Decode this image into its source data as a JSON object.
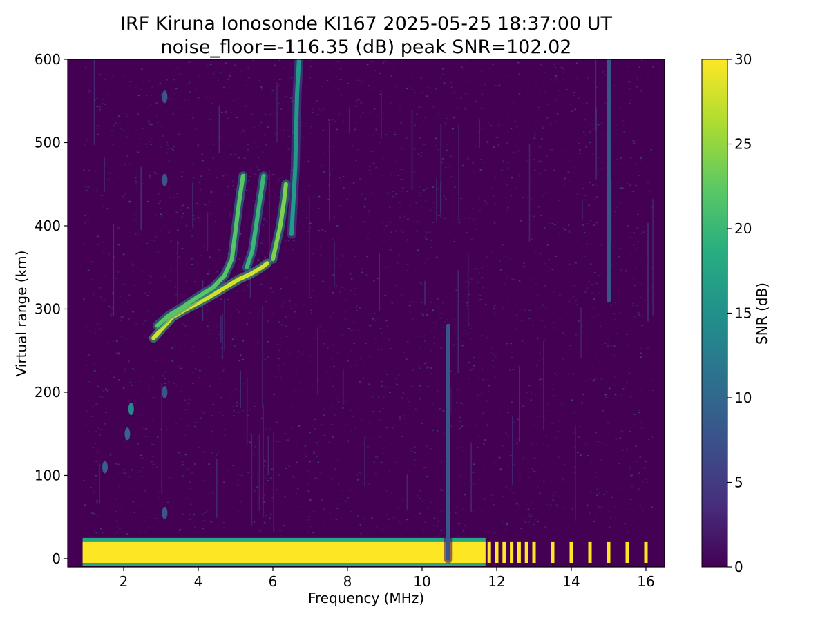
{
  "chart_data": {
    "type": "heatmap",
    "title": "IRF Kiruna Ionosonde KI167 2025-05-25 18:37:00  UT",
    "subtitle": "noise_floor=-116.35 (dB) peak SNR=102.02",
    "xlabel": "Frequency (MHz)",
    "ylabel": "Virtual range (km)",
    "xlim": [
      0.5,
      16.5
    ],
    "ylim": [
      -10,
      600
    ],
    "x_ticks": [
      2,
      4,
      6,
      8,
      10,
      12,
      14,
      16
    ],
    "y_ticks": [
      0,
      100,
      200,
      300,
      400,
      500,
      600
    ],
    "data_freq_range_mhz": [
      0.9,
      16.2
    ],
    "colorbar": {
      "label": "SNR (dB)",
      "range": [
        0,
        30
      ],
      "ticks": [
        0,
        5,
        10,
        15,
        20,
        25,
        30
      ],
      "colormap": "viridis"
    },
    "ground_echo": {
      "range_km": [
        -5,
        20
      ],
      "continuous_freq_mhz": [
        0.9,
        11.7
      ],
      "discrete_freqs_mhz": [
        11.8,
        12.0,
        12.2,
        12.4,
        12.6,
        12.8,
        13.0,
        13.5,
        14.0,
        14.5,
        15.0,
        15.5,
        16.0
      ],
      "snr_db": 30
    },
    "traces": [
      {
        "name": "",
        "snr_db": 28,
        "points": [
          [
            2.8,
            265
          ],
          [
            3.0,
            275
          ],
          [
            3.3,
            290
          ],
          [
            3.6,
            298
          ],
          [
            3.9,
            305
          ],
          [
            4.2,
            312
          ],
          [
            4.5,
            320
          ],
          [
            4.8,
            328
          ],
          [
            5.1,
            336
          ],
          [
            5.4,
            342
          ],
          [
            5.7,
            350
          ],
          [
            5.85,
            355
          ]
        ]
      },
      {
        "name": "",
        "snr_db": 22,
        "points": [
          [
            2.9,
            280
          ],
          [
            3.2,
            292
          ],
          [
            3.6,
            303
          ],
          [
            4.0,
            315
          ],
          [
            4.4,
            326
          ],
          [
            4.7,
            340
          ],
          [
            4.9,
            360
          ],
          [
            5.0,
            395
          ],
          [
            5.1,
            430
          ],
          [
            5.2,
            460
          ]
        ]
      },
      {
        "name": "",
        "snr_db": 20,
        "points": [
          [
            5.3,
            350
          ],
          [
            5.45,
            370
          ],
          [
            5.55,
            400
          ],
          [
            5.65,
            430
          ],
          [
            5.75,
            460
          ]
        ]
      },
      {
        "name": "",
        "snr_db": 24,
        "points": [
          [
            6.0,
            360
          ],
          [
            6.1,
            380
          ],
          [
            6.2,
            400
          ],
          [
            6.3,
            430
          ],
          [
            6.35,
            450
          ]
        ]
      },
      {
        "name": "",
        "snr_db": 16,
        "points": [
          [
            6.5,
            390
          ],
          [
            6.55,
            430
          ],
          [
            6.6,
            470
          ],
          [
            6.62,
            510
          ],
          [
            6.65,
            560
          ],
          [
            6.7,
            600
          ]
        ]
      },
      {
        "name": "",
        "snr_db": 8,
        "points": [
          [
            10.7,
            0
          ],
          [
            10.7,
            280
          ]
        ]
      },
      {
        "name": "",
        "snr_db": 8,
        "points": [
          [
            15.0,
            310
          ],
          [
            15.0,
            600
          ]
        ]
      }
    ],
    "spots": [
      {
        "freq_mhz": 2.2,
        "range_km": 180,
        "snr_db": 14
      },
      {
        "freq_mhz": 2.1,
        "range_km": 150,
        "snr_db": 10
      },
      {
        "freq_mhz": 1.5,
        "range_km": 110,
        "snr_db": 9
      },
      {
        "freq_mhz": 3.1,
        "range_km": 555,
        "snr_db": 8
      },
      {
        "freq_mhz": 3.1,
        "range_km": 455,
        "snr_db": 8
      },
      {
        "freq_mhz": 3.1,
        "range_km": 200,
        "snr_db": 8
      },
      {
        "freq_mhz": 3.1,
        "range_km": 55,
        "snr_db": 8
      }
    ]
  }
}
